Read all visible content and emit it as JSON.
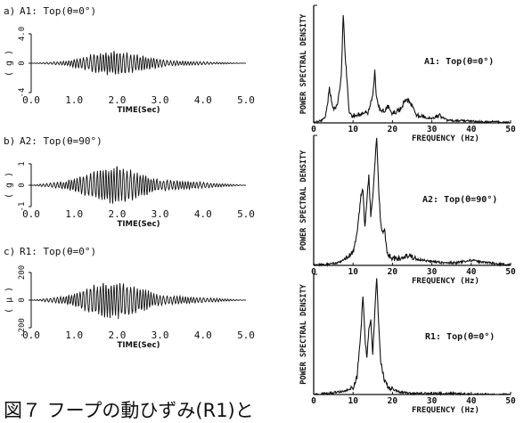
{
  "caption": "図７ フープの動ひずみ(R1)と",
  "chart_data": [
    {
      "type": "line",
      "id": "a",
      "panel_label": "a)",
      "title": "A1: Top(θ=0°)",
      "xlabel": "TIME(Sec)",
      "ylabel": "( g )",
      "xlim": [
        0,
        5
      ],
      "ylim": [
        -4,
        4
      ],
      "xticks": [
        "0.0",
        "1.0",
        "2.0",
        "3.0",
        "4.0",
        "5.0"
      ],
      "yticks": [
        "4.0",
        "0",
        "-4"
      ],
      "series": [
        {
          "x": [
            0,
            0.8,
            1.6,
            2.0,
            2.4,
            3.2,
            5.0
          ],
          "y": [
            0,
            0.3,
            1.5,
            1.8,
            1.3,
            0.4,
            0
          ]
        }
      ]
    },
    {
      "type": "line",
      "id": "b",
      "panel_label": "b)",
      "title": "A2: Top(θ=90°)",
      "xlabel": "TIME(Sec)",
      "ylabel": "( g )",
      "xlim": [
        0,
        5
      ],
      "ylim": [
        -1,
        1
      ],
      "xticks": [
        "0.0",
        "1.0",
        "2.0",
        "3.0",
        "4.0",
        "5.0"
      ],
      "yticks": [
        "1",
        "0",
        "-1"
      ],
      "series": [
        {
          "x": [
            0,
            0.8,
            1.6,
            2.0,
            2.4,
            3.0,
            5.0
          ],
          "y": [
            0,
            0.2,
            0.8,
            0.95,
            0.7,
            0.3,
            0
          ]
        }
      ]
    },
    {
      "type": "line",
      "id": "c",
      "panel_label": "c)",
      "title": "R1: Top(θ=0°)",
      "xlabel": "TIME(Sec)",
      "ylabel": "( μ )",
      "xlim": [
        0,
        5
      ],
      "ylim": [
        -200,
        200
      ],
      "xticks": [
        "0.0",
        "1.0",
        "2.0",
        "3.0",
        "4.0",
        "5.0"
      ],
      "yticks": [
        "200",
        "0",
        "-200"
      ],
      "series": [
        {
          "x": [
            0,
            0.8,
            1.6,
            2.0,
            2.4,
            3.0,
            5.0
          ],
          "y": [
            0,
            30,
            130,
            150,
            110,
            40,
            0
          ]
        }
      ]
    },
    {
      "type": "line",
      "id": "A1-psd",
      "title": "A1: Top(θ=0°)",
      "xlabel": "FREQUENCY (Hz)",
      "ylabel": "POWER SPECTRAL DENSITY",
      "xlim": [
        0,
        50
      ],
      "xticks": [
        "0",
        "10",
        "20",
        "30",
        "40",
        "50"
      ],
      "series": [
        {
          "x": [
            0,
            2,
            3,
            4,
            5,
            6,
            7,
            7.5,
            8,
            9,
            10,
            12,
            14,
            15,
            15.5,
            16,
            17,
            18,
            19,
            20,
            22,
            23,
            24,
            25,
            26,
            28,
            30,
            32,
            34,
            38,
            42,
            46,
            50
          ],
          "y": [
            0,
            0.02,
            0.05,
            0.3,
            0.12,
            0.15,
            0.4,
            0.95,
            0.6,
            0.1,
            0.06,
            0.08,
            0.1,
            0.25,
            0.45,
            0.2,
            0.1,
            0.1,
            0.15,
            0.08,
            0.12,
            0.18,
            0.2,
            0.15,
            0.06,
            0.05,
            0.04,
            0.06,
            0.02,
            0.02,
            0.01,
            0.01,
            0
          ]
        }
      ]
    },
    {
      "type": "line",
      "id": "A2-psd",
      "title": "A2: Top(θ=90°)",
      "xlabel": "FREQUENCY (Hz)",
      "ylabel": "POWER SPECTRAL DENSITY",
      "xlim": [
        0,
        50
      ],
      "xticks": [
        "0",
        "10",
        "20",
        "30",
        "40",
        "50"
      ],
      "series": [
        {
          "x": [
            0,
            4,
            6,
            8,
            10,
            11,
            12,
            12.5,
            13,
            13.5,
            14,
            14.5,
            15,
            15.5,
            16,
            16.5,
            17,
            17.5,
            18,
            18.5,
            19,
            20,
            22,
            24,
            26,
            28,
            30,
            33,
            36,
            40,
            44,
            48,
            50
          ],
          "y": [
            0,
            0.01,
            0.02,
            0.05,
            0.1,
            0.25,
            0.55,
            0.6,
            0.3,
            0.5,
            0.7,
            0.4,
            0.55,
            0.8,
            1.0,
            0.6,
            0.35,
            0.25,
            0.3,
            0.12,
            0.08,
            0.06,
            0.05,
            0.08,
            0.05,
            0.04,
            0.03,
            0.02,
            0.02,
            0.04,
            0.02,
            0.01,
            0
          ]
        }
      ]
    },
    {
      "type": "line",
      "id": "R1-psd",
      "title": "R1: Top(θ=0°)",
      "xlabel": "FREQUENCY (Hz)",
      "ylabel": "POWER SPECTRAL DENSITY",
      "xlim": [
        0,
        50
      ],
      "xticks": [
        "0",
        "10",
        "20",
        "30",
        "40",
        "50"
      ],
      "series": [
        {
          "x": [
            0,
            4,
            8,
            10,
            11,
            12,
            12.5,
            13,
            13.5,
            14,
            14.5,
            15,
            15.5,
            16,
            16.5,
            17,
            17.5,
            18,
            19,
            20,
            21,
            22,
            24,
            26,
            28,
            30,
            35,
            40,
            45,
            50
          ],
          "y": [
            0,
            0.01,
            0.03,
            0.06,
            0.15,
            0.55,
            0.85,
            0.5,
            0.3,
            0.55,
            0.65,
            0.35,
            0.7,
            1.0,
            0.6,
            0.3,
            0.2,
            0.12,
            0.06,
            0.05,
            0.03,
            0.02,
            0.01,
            0.01,
            0.01,
            0.01,
            0.01,
            0.0,
            0.0,
            0
          ]
        }
      ]
    }
  ]
}
